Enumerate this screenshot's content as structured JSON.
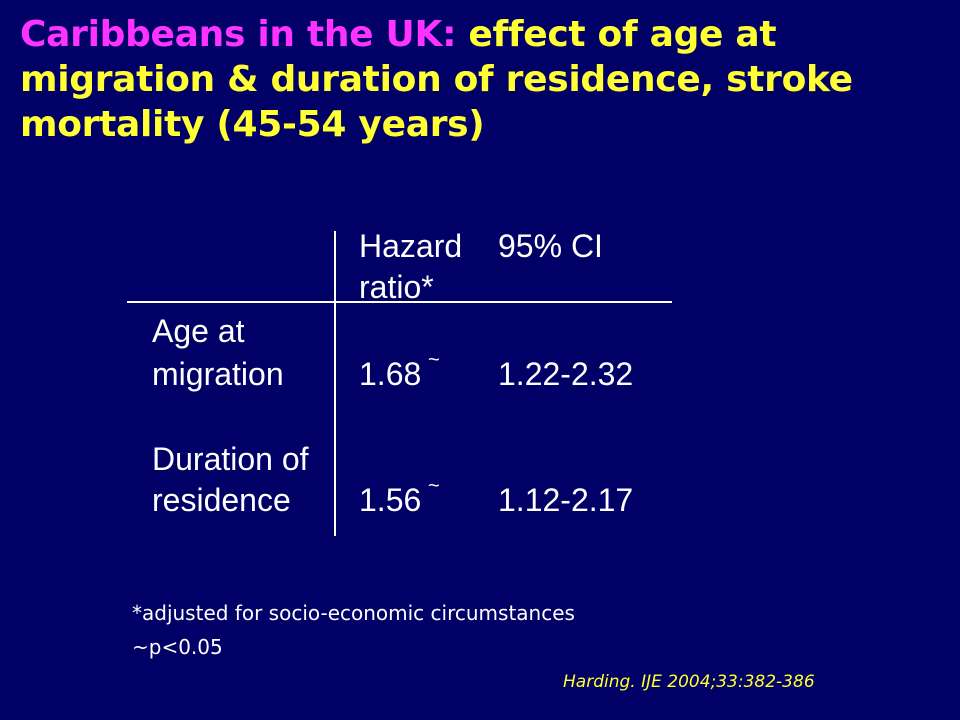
{
  "slide": {
    "title_lead": "Caribbeans in the UK:",
    "title_rest": "effect of age at migration & duration of residence, stroke mortality (45-54 years)"
  },
  "table": {
    "header": {
      "col1_line1": "Hazard",
      "col1_line2": "ratio*",
      "col2": "95% CI"
    },
    "rows": [
      {
        "label_line1": "Age at",
        "label_line2": "migration",
        "hazard_ratio": "1.68",
        "significance_mark": "~",
        "ci": "1.22-2.32"
      },
      {
        "label_line1": "Duration of",
        "label_line2": "residence",
        "hazard_ratio": "1.56",
        "significance_mark": "~",
        "ci": "1.12-2.17"
      }
    ]
  },
  "footnotes": {
    "adjusted": "*adjusted for socio-economic circumstances",
    "significance": "~p<0.05"
  },
  "citation": "Harding. IJE 2004;33:382-386",
  "colors": {
    "background": "#000066",
    "title_lead": "#ff33ff",
    "title_rest": "#ffff33",
    "text": "#ffffff",
    "citation": "#ffff33"
  }
}
